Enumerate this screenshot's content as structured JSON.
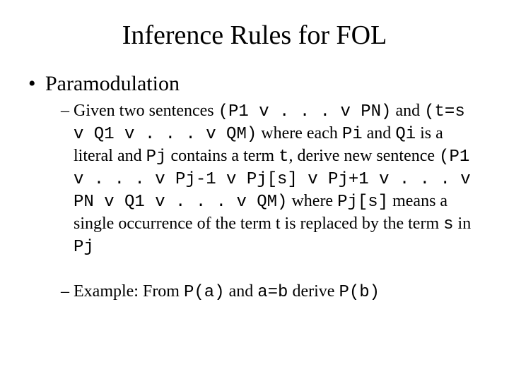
{
  "title": "Inference Rules for FOL",
  "bullet1": "Paramodulation",
  "para": {
    "t1": "Given two sentences ",
    "c1": "(P1 v . . . v PN)",
    "t2": " and ",
    "c2": "(t=s v Q1 v . . . v QM)",
    "t3": " where each ",
    "c3": "Pi",
    "t4": " and ",
    "c4": "Qi",
    "t5": " is a literal and ",
    "c5": "Pj",
    "t6": " contains a term ",
    "c6": "t",
    "t7": ", derive new sentence ",
    "c7": "(P1 v . . . v Pj-1 v Pj[s] v Pj+1 v . . . v PN v Q1 v . . . v QM)",
    "t8": " where ",
    "c8": "Pj[s]",
    "t9": " means a single occurrence of the term t is replaced by the term ",
    "c9": "s",
    "t10": " in ",
    "c10": "Pj"
  },
  "ex": {
    "t1": "Example: From ",
    "c1": "P(a)",
    "t2": " and ",
    "c2": "a=b",
    "t3": " derive ",
    "c3": "P(b)"
  }
}
